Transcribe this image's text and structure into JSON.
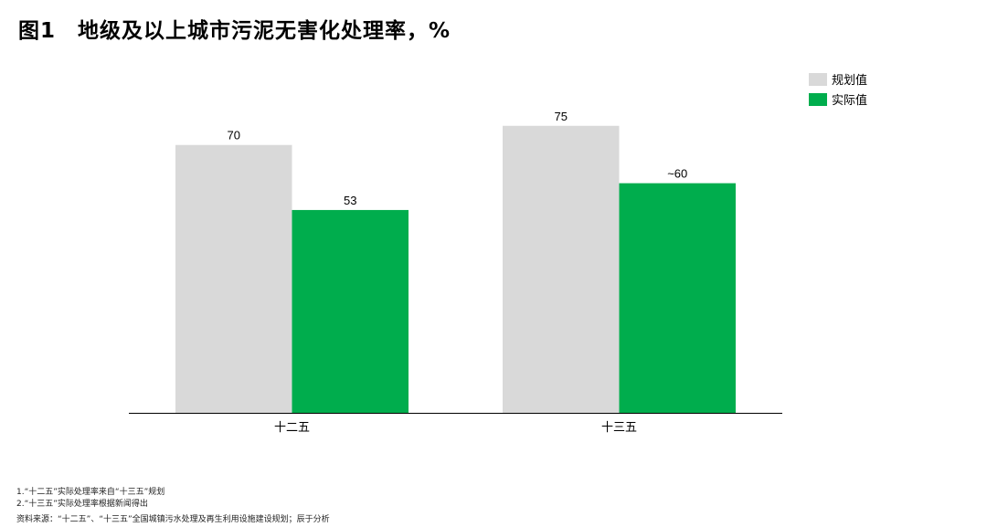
{
  "title": "图1　地级及以上城市污泥无害化处理率，%",
  "chart_data": {
    "type": "bar",
    "title": "图1　地级及以上城市污泥无害化处理率，%",
    "categories": [
      "十二五",
      "十三五"
    ],
    "series": [
      {
        "name": "规划值",
        "values": [
          70,
          75
        ],
        "labels": [
          "70",
          "75"
        ],
        "color": "#d9d9d9"
      },
      {
        "name": "实际值",
        "values": [
          53,
          60
        ],
        "labels": [
          "53",
          "~60"
        ],
        "color": "#00ad4d"
      }
    ],
    "ylim": [
      0,
      100
    ],
    "grid": false,
    "legend": "top-right"
  },
  "footnotes": [
    "1.“十二五”实际处理率来自“十三五”规划",
    "2.“十三五”实际处理率根据新闻得出"
  ],
  "source": "资料来源：“十二五”、“十三五”全国城镇污水处理及再生利用设施建设规划；辰于分析"
}
